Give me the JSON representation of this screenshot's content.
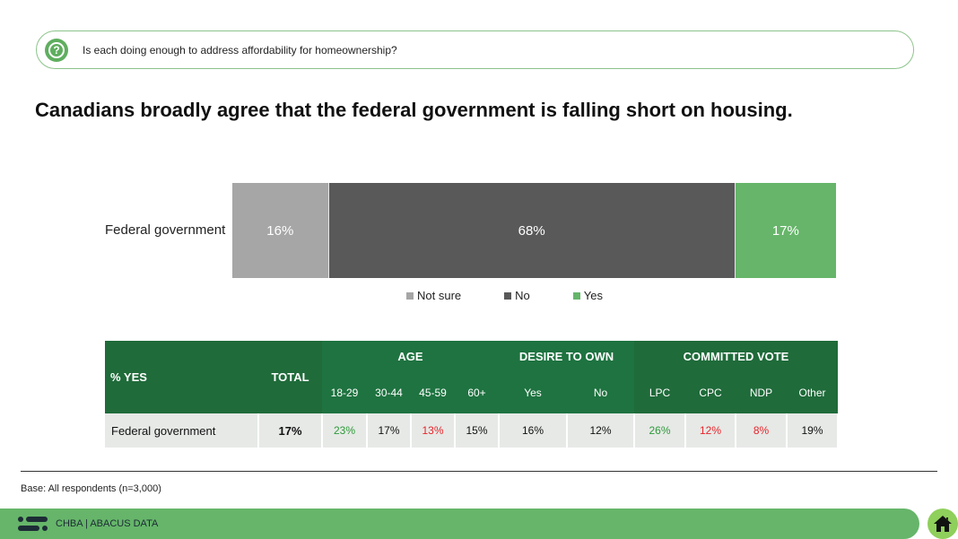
{
  "question": {
    "icon": "question-icon",
    "text": "Is each doing enough to address affordability for homeownership?"
  },
  "headline": "Canadians broadly agree that the federal government is falling short on housing.",
  "chart_data": {
    "type": "bar",
    "orientation": "horizontal-stacked",
    "categories": [
      "Federal government"
    ],
    "series": [
      {
        "name": "Not sure",
        "values": [
          16
        ],
        "color": "#a6a6a6",
        "label": "16%"
      },
      {
        "name": "No",
        "values": [
          68
        ],
        "color": "#595959",
        "label": "68%"
      },
      {
        "name": "Yes",
        "values": [
          17
        ],
        "color": "#66b56a",
        "label": "17%"
      }
    ],
    "legend": [
      "Not sure",
      "No",
      "Yes"
    ],
    "legend_position": "bottom",
    "grid": false
  },
  "table": {
    "row_header": "% YES",
    "total_header": "TOTAL",
    "groups": [
      {
        "label": "AGE",
        "cols": [
          "18-29",
          "30-44",
          "45-59",
          "60+"
        ]
      },
      {
        "label": "DESIRE TO OWN",
        "cols": [
          "Yes",
          "No"
        ]
      },
      {
        "label": "COMMITTED VOTE",
        "cols": [
          "LPC",
          "CPC",
          "NDP",
          "Other"
        ]
      }
    ],
    "rows": [
      {
        "name": "Federal government",
        "total": "17%",
        "values": [
          "23%",
          "17%",
          "13%",
          "15%",
          "16%",
          "12%",
          "26%",
          "12%",
          "8%",
          "19%"
        ],
        "colors": [
          "#2e9a3a",
          "#111111",
          "#e8242b",
          "#111111",
          "#111111",
          "#111111",
          "#2e9a3a",
          "#e8242b",
          "#e8242b",
          "#111111"
        ]
      }
    ]
  },
  "base_note": "Base: All respondents (n=3,000)",
  "footer": {
    "text": "CHBA  |  ABACUS DATA",
    "home_icon": "home-icon"
  }
}
